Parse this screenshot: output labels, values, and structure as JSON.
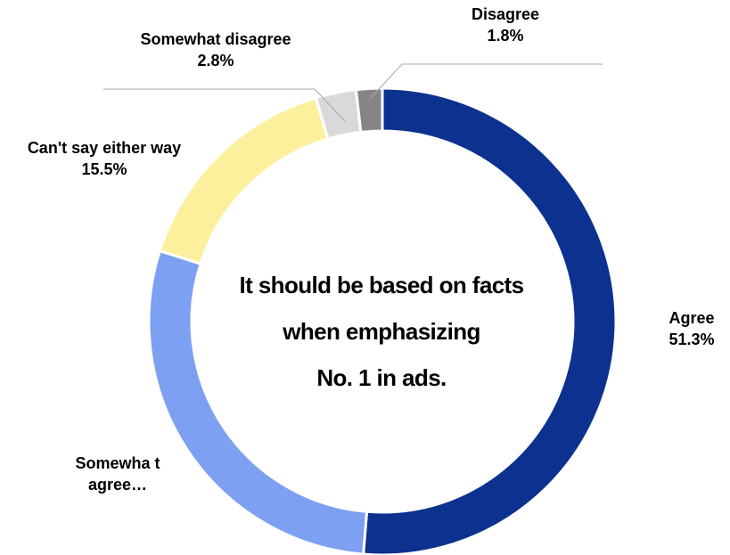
{
  "chart_data": {
    "type": "pie",
    "style": "donut",
    "center_title": [
      "It should be based on facts",
      "when emphasizing",
      "No. 1 in ads."
    ],
    "slices": [
      {
        "name": "Agree",
        "value": 51.3,
        "label": "51.3%",
        "color": "#0c318f"
      },
      {
        "name": "Somewha t agree…",
        "value": 28.6,
        "label": "",
        "color": "#7ea0f2"
      },
      {
        "name": "Can't say either way",
        "value": 15.5,
        "label": "15.5%",
        "color": "#fcf09c"
      },
      {
        "name": "Somewhat disagree",
        "value": 2.8,
        "label": "2.8%",
        "color": "#d9d9d9"
      },
      {
        "name": "Disagree",
        "value": 1.8,
        "label": "1.8%",
        "color": "#858585"
      }
    ]
  }
}
